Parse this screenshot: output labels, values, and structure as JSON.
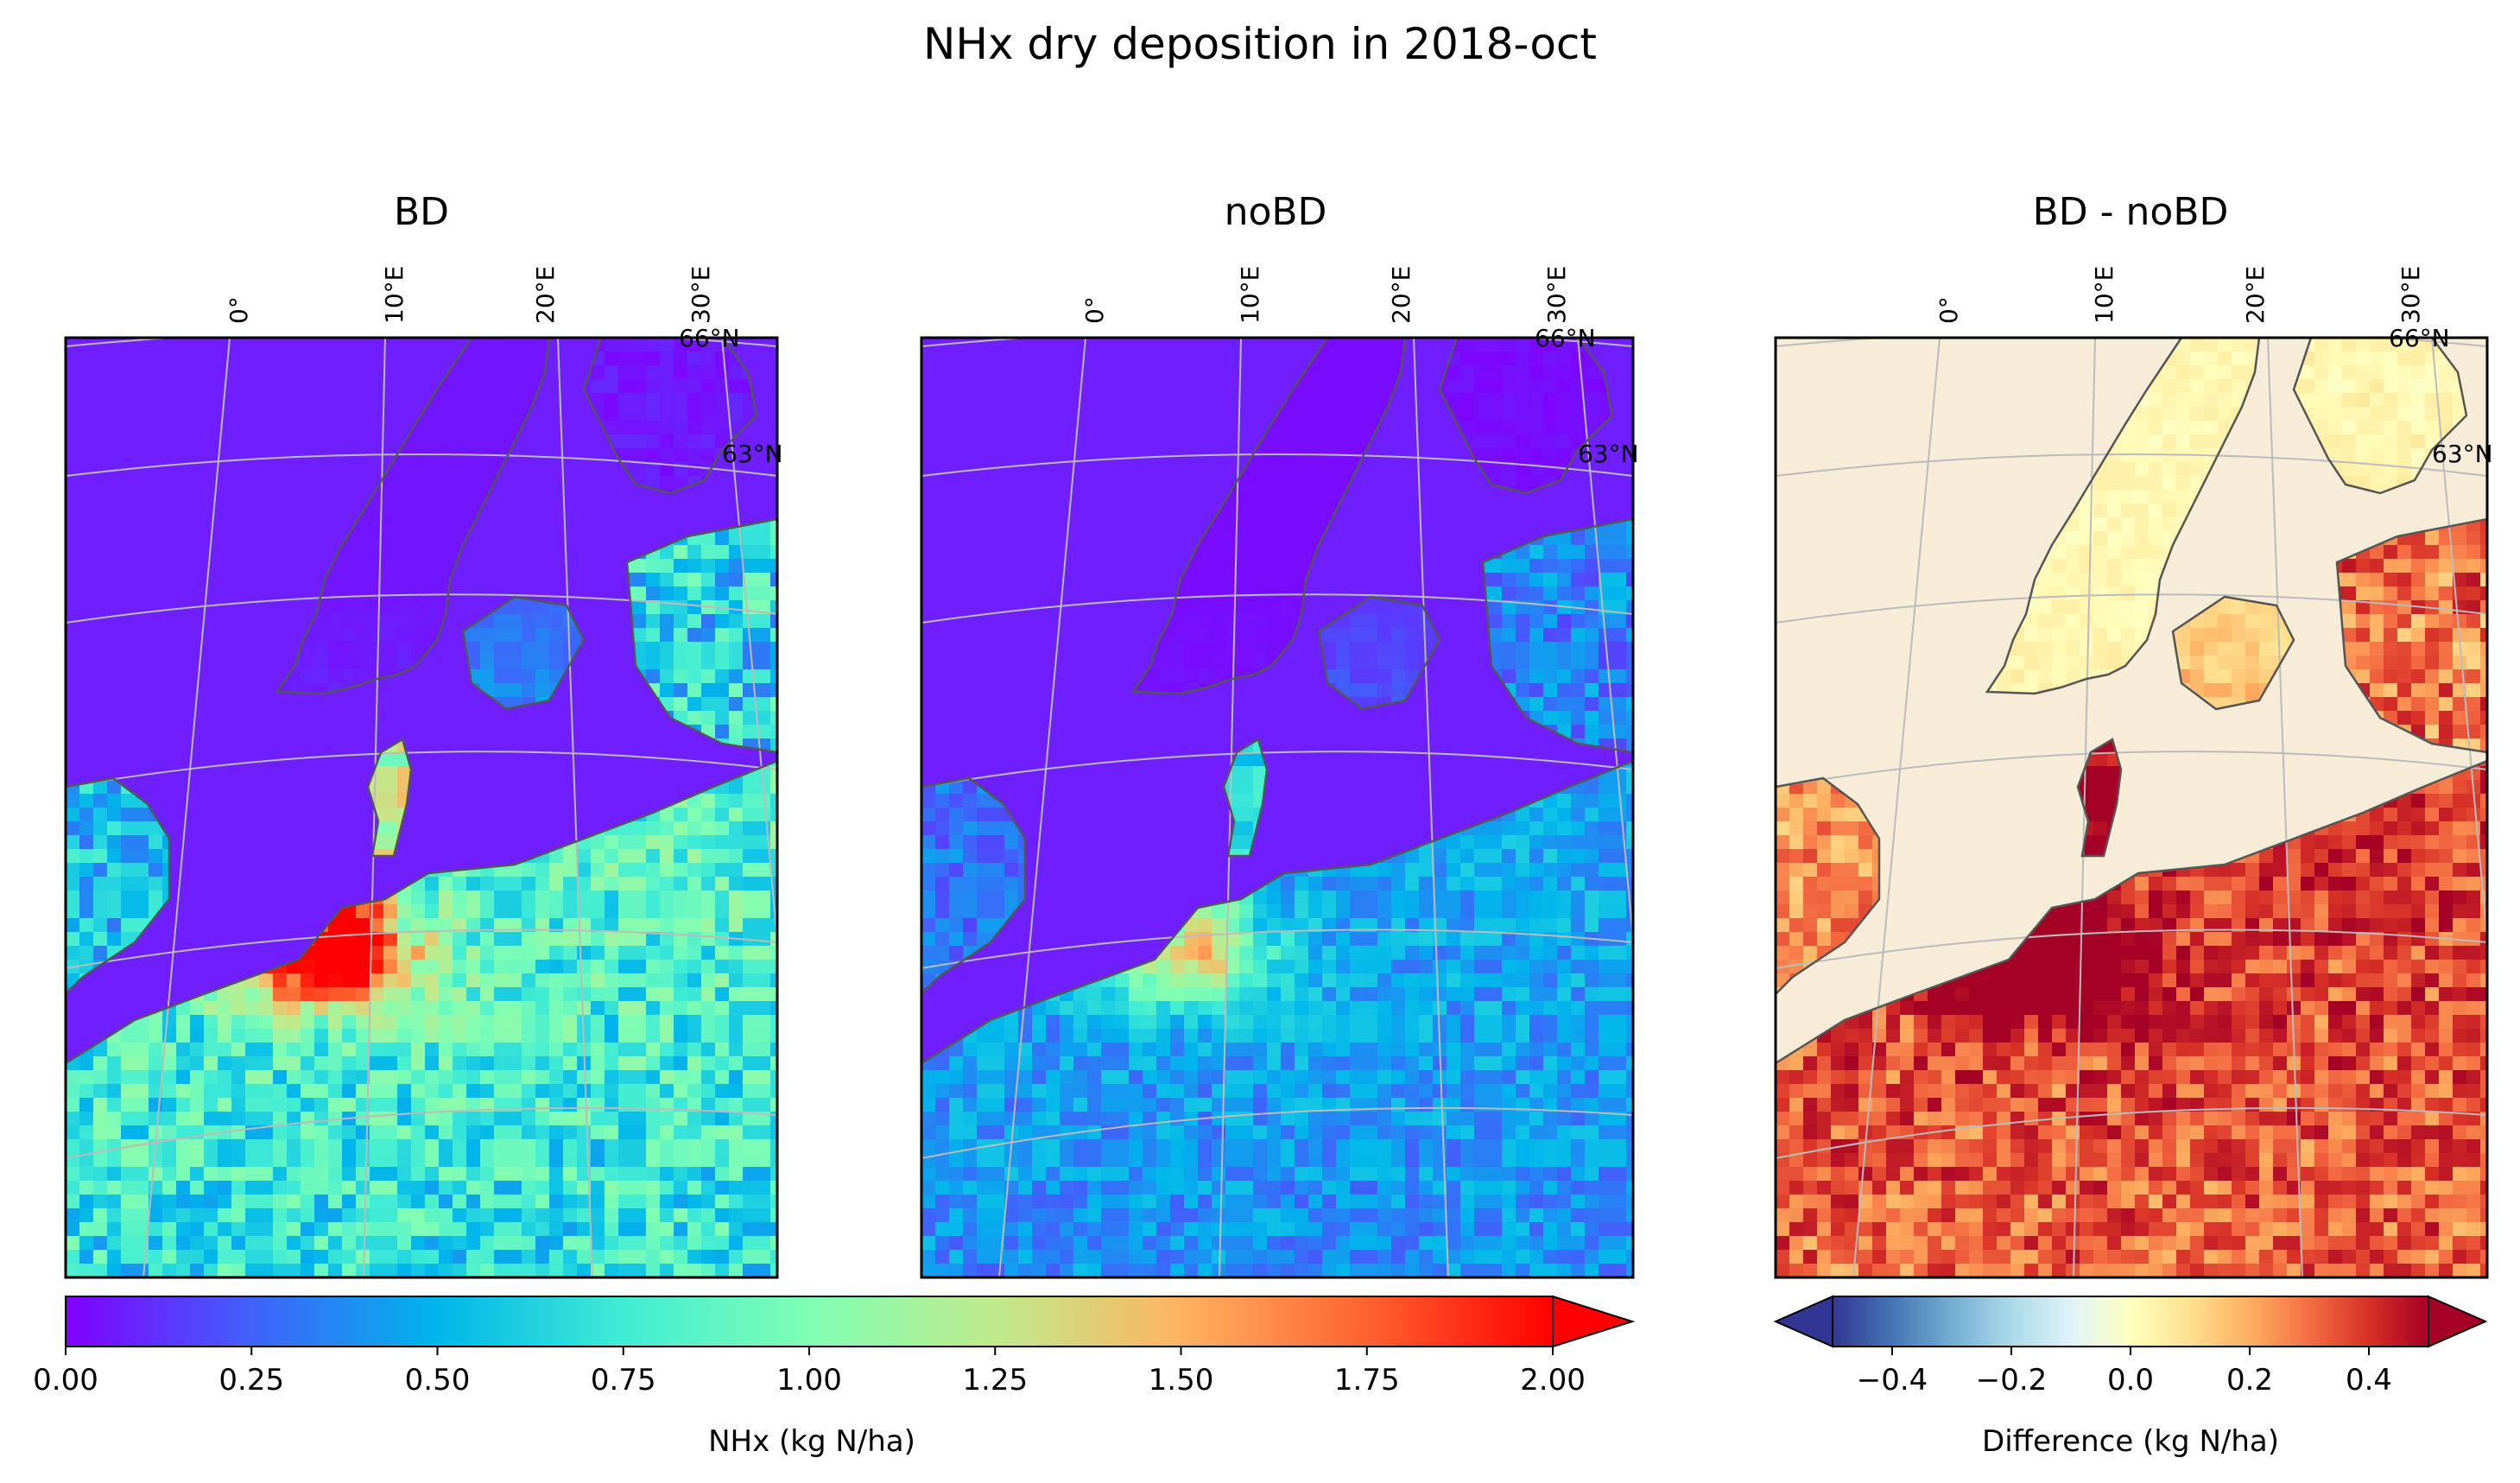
{
  "figure_title": "NHx dry deposition in 2018-oct",
  "panels": [
    {
      "title": "BD",
      "scheme": "abs",
      "factor": 1.0
    },
    {
      "title": "noBD",
      "scheme": "abs",
      "factor": 0.55
    },
    {
      "title": "BD - noBD",
      "scheme": "diff",
      "factor": 1.0
    }
  ],
  "gridlines": {
    "lon_labels": [
      "0°",
      "10°E",
      "20°E",
      "30°E"
    ],
    "lat_labels": [
      "66°N",
      "63°N"
    ]
  },
  "colorbars": [
    {
      "label": "NHx (kg N/ha)",
      "cmap": "rainbow",
      "extend": "max",
      "range": [
        0,
        2
      ],
      "ticks": [
        "0.00",
        "0.25",
        "0.50",
        "0.75",
        "1.00",
        "1.25",
        "1.50",
        "1.75",
        "2.00"
      ]
    },
    {
      "label": "Difference (kg N/ha)",
      "cmap": "RdYlBu_r",
      "extend": "both",
      "range": [
        -0.5,
        0.5
      ],
      "ticks": [
        "−0.4",
        "−0.2",
        "0.0",
        "0.2",
        "0.4"
      ]
    }
  ],
  "colors": {
    "ocean_abs": "#6f1ffd",
    "ocean_diff": "#f6ecd7",
    "coastline": "#555555",
    "gridline": "#bbbbbb"
  }
}
